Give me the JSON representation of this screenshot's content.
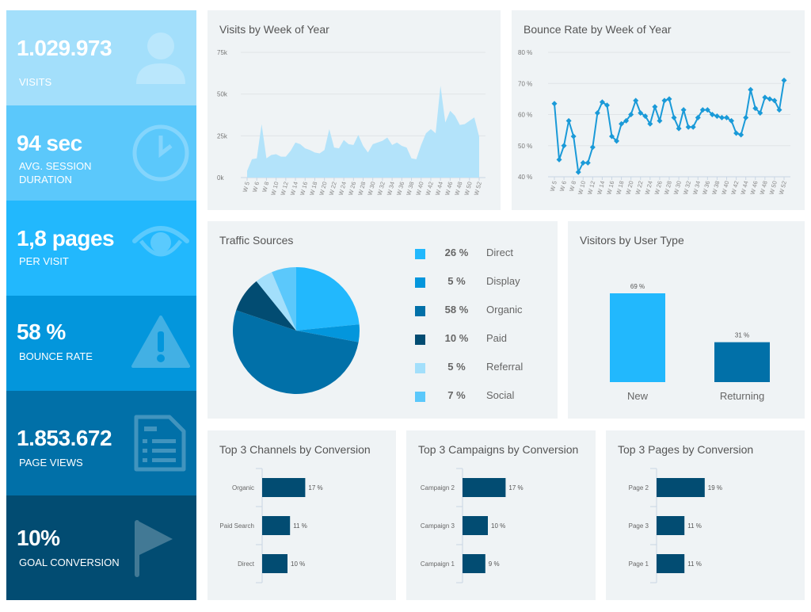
{
  "kpis": [
    {
      "value": "1.029.973",
      "label": "VISITS",
      "icon": "user-icon",
      "color": "#a3dffb"
    },
    {
      "value": "94 sec",
      "label": "AVG. SESSION DURATION",
      "icon": "clock-icon",
      "color": "#5bc8fb"
    },
    {
      "value": "1,8 pages",
      "label": "PER VISIT",
      "icon": "eye-icon",
      "color": "#22b8fd"
    },
    {
      "value": "58 %",
      "label": "BOUNCE RATE",
      "icon": "warning-icon",
      "color": "#0396dc"
    },
    {
      "value": "1.853.672",
      "label": "PAGE VIEWS",
      "icon": "document-icon",
      "color": "#0170a8"
    },
    {
      "value": "10%",
      "label": "GOAL CONVERSION",
      "icon": "flag-icon",
      "color": "#024c72"
    }
  ],
  "chart_data": [
    {
      "type": "area",
      "title": "Visits by Week of Year",
      "color": "#b3e3fa",
      "ylim": [
        0,
        75000
      ],
      "yticks": [
        "0k",
        "25k",
        "50k",
        "75k"
      ],
      "xtick_labels": [
        "W 5",
        "W 6",
        "W 8",
        "W 10",
        "W 12",
        "W 14",
        "W 16",
        "W 18",
        "W 20",
        "W 22",
        "W 24",
        "W 26",
        "W 28",
        "W 30",
        "W 32",
        "W 34",
        "W 36",
        "W 38",
        "W 40",
        "W 42",
        "W 44",
        "W 46",
        "W 48",
        "W 50",
        "W 52"
      ],
      "values": [
        4000,
        11000,
        11500,
        32000,
        11500,
        13500,
        14000,
        12500,
        12500,
        16000,
        21000,
        20000,
        17500,
        16500,
        15000,
        14500,
        16500,
        29000,
        18000,
        17500,
        22500,
        20000,
        19500,
        25500,
        19000,
        15000,
        20000,
        21000,
        22000,
        24000,
        19500,
        21000,
        19000,
        18000,
        11500,
        11000,
        19500,
        26500,
        29000,
        26500,
        55000,
        33000,
        40000,
        37000,
        31500,
        32000,
        34000,
        36000,
        24500
      ]
    },
    {
      "type": "line",
      "title": "Bounce Rate by Week of Year",
      "color": "#1a9ad8",
      "ylim": [
        40,
        80
      ],
      "yticks": [
        "40 %",
        "50 %",
        "60 %",
        "70 %",
        "80 %"
      ],
      "xtick_labels": [
        "W 5",
        "W 6",
        "W 8",
        "W 10",
        "W 12",
        "W 14",
        "W 16",
        "W 18",
        "W 20",
        "W 22",
        "W 24",
        "W 26",
        "W 28",
        "W 30",
        "W 32",
        "W 34",
        "W 36",
        "W 38",
        "W 40",
        "W 42",
        "W 44",
        "W 46",
        "W 48",
        "W 50",
        "W 52"
      ],
      "values": [
        63.5,
        45.5,
        50,
        58,
        53,
        41.5,
        44.5,
        44.5,
        49.5,
        60.5,
        64,
        63,
        53,
        51.5,
        57,
        58,
        60,
        64.5,
        60.5,
        59.5,
        57,
        62.5,
        58,
        64.5,
        65,
        59,
        55.5,
        61.5,
        56,
        56,
        59,
        61.5,
        61.5,
        60,
        59.5,
        59,
        59,
        58,
        54,
        53.5,
        59,
        68,
        62,
        60.5,
        65.5,
        65,
        64.5,
        61.5,
        71
      ]
    },
    {
      "type": "pie",
      "title": "Traffic Sources",
      "slices": [
        {
          "label": "Direct",
          "pct": "26 %",
          "value": 26,
          "color": "#22b8fd"
        },
        {
          "label": "Display",
          "pct": "5 %",
          "value": 5,
          "color": "#0396dc"
        },
        {
          "label": "Organic",
          "pct": "58 %",
          "value": 58,
          "color": "#0170a8"
        },
        {
          "label": "Paid",
          "pct": "10 %",
          "value": 10,
          "color": "#024c72"
        },
        {
          "label": "Referral",
          "pct": "5 %",
          "value": 5,
          "color": "#a3dffb"
        },
        {
          "label": "Social",
          "pct": "7 %",
          "value": 7,
          "color": "#5bc8fb"
        }
      ]
    },
    {
      "type": "bar",
      "title": "Visitors by User Type",
      "categories": [
        "New",
        "Returning"
      ],
      "values": [
        69,
        31
      ],
      "labels": [
        "69 %",
        "31 %"
      ],
      "colors": [
        "#22b8fd",
        "#0170a8"
      ]
    },
    {
      "type": "bar",
      "orientation": "horizontal",
      "title": "Top 3 Channels by Conversion",
      "categories": [
        "Organic",
        "Paid Search",
        "Direct"
      ],
      "values": [
        17,
        11,
        10
      ],
      "labels": [
        "17 %",
        "11 %",
        "10 %"
      ],
      "color": "#024c72"
    },
    {
      "type": "bar",
      "orientation": "horizontal",
      "title": "Top 3 Campaigns by Conversion",
      "categories": [
        "Campaign 2",
        "Campaign 3",
        "Campaign 1"
      ],
      "values": [
        17,
        10,
        9
      ],
      "labels": [
        "17 %",
        "10 %",
        "9 %"
      ],
      "color": "#024c72"
    },
    {
      "type": "bar",
      "orientation": "horizontal",
      "title": "Top 3 Pages by Conversion",
      "categories": [
        "Page 2",
        "Page 3",
        "Page 1"
      ],
      "values": [
        19,
        11,
        11
      ],
      "labels": [
        "19 %",
        "11 %",
        "11 %"
      ],
      "color": "#024c72"
    }
  ]
}
